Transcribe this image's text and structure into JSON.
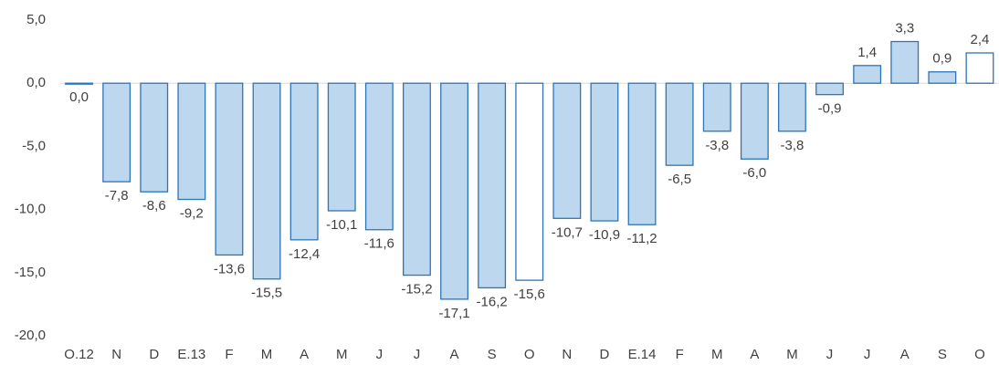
{
  "chart_data": {
    "type": "bar",
    "categories": [
      "O.12",
      "N",
      "D",
      "E.13",
      "F",
      "M",
      "A",
      "M",
      "J",
      "J",
      "A",
      "S",
      "O",
      "N",
      "D",
      "E.14",
      "F",
      "M",
      "A",
      "M",
      "J",
      "J",
      "A",
      "S",
      "O"
    ],
    "values": [
      0.0,
      -7.8,
      -8.6,
      -9.2,
      -13.6,
      -15.5,
      -12.4,
      -10.1,
      -11.6,
      -15.2,
      -17.1,
      -16.2,
      -15.6,
      -10.7,
      -10.9,
      -11.2,
      -6.5,
      -3.8,
      -6.0,
      -3.8,
      -0.9,
      1.4,
      3.3,
      0.9,
      2.4
    ],
    "value_labels": [
      "0,0",
      "-7,8",
      "-8,6",
      "-9,2",
      "-13,6",
      "-15,5",
      "-12,4",
      "-10,1",
      "-11,6",
      "-15,2",
      "-17,1",
      "-16,2",
      "-15,6",
      "-10,7",
      "-10,9",
      "-11,2",
      "-6,5",
      "-3,8",
      "-6,0",
      "-3,8",
      "-0,9",
      "1,4",
      "3,3",
      "0,9",
      "2,4"
    ],
    "colors": [
      "#bdd7ee",
      "#bdd7ee",
      "#bdd7ee",
      "#bdd7ee",
      "#bdd7ee",
      "#bdd7ee",
      "#bdd7ee",
      "#bdd7ee",
      "#bdd7ee",
      "#bdd7ee",
      "#bdd7ee",
      "#bdd7ee",
      "#ffffff",
      "#bdd7ee",
      "#bdd7ee",
      "#bdd7ee",
      "#bdd7ee",
      "#bdd7ee",
      "#bdd7ee",
      "#bdd7ee",
      "#bdd7ee",
      "#bdd7ee",
      "#bdd7ee",
      "#bdd7ee",
      "#ffffff"
    ],
    "edge_color": "#2e75b6",
    "ylim": [
      -20,
      5
    ],
    "yticks": [
      {
        "value": 5,
        "label": "5,0"
      },
      {
        "value": 0,
        "label": "0,0"
      },
      {
        "value": -5,
        "label": "-5,0"
      },
      {
        "value": -10,
        "label": "-10,0"
      },
      {
        "value": -15,
        "label": "-15,0"
      },
      {
        "value": -20,
        "label": "-20,0"
      }
    ],
    "grid": false
  }
}
